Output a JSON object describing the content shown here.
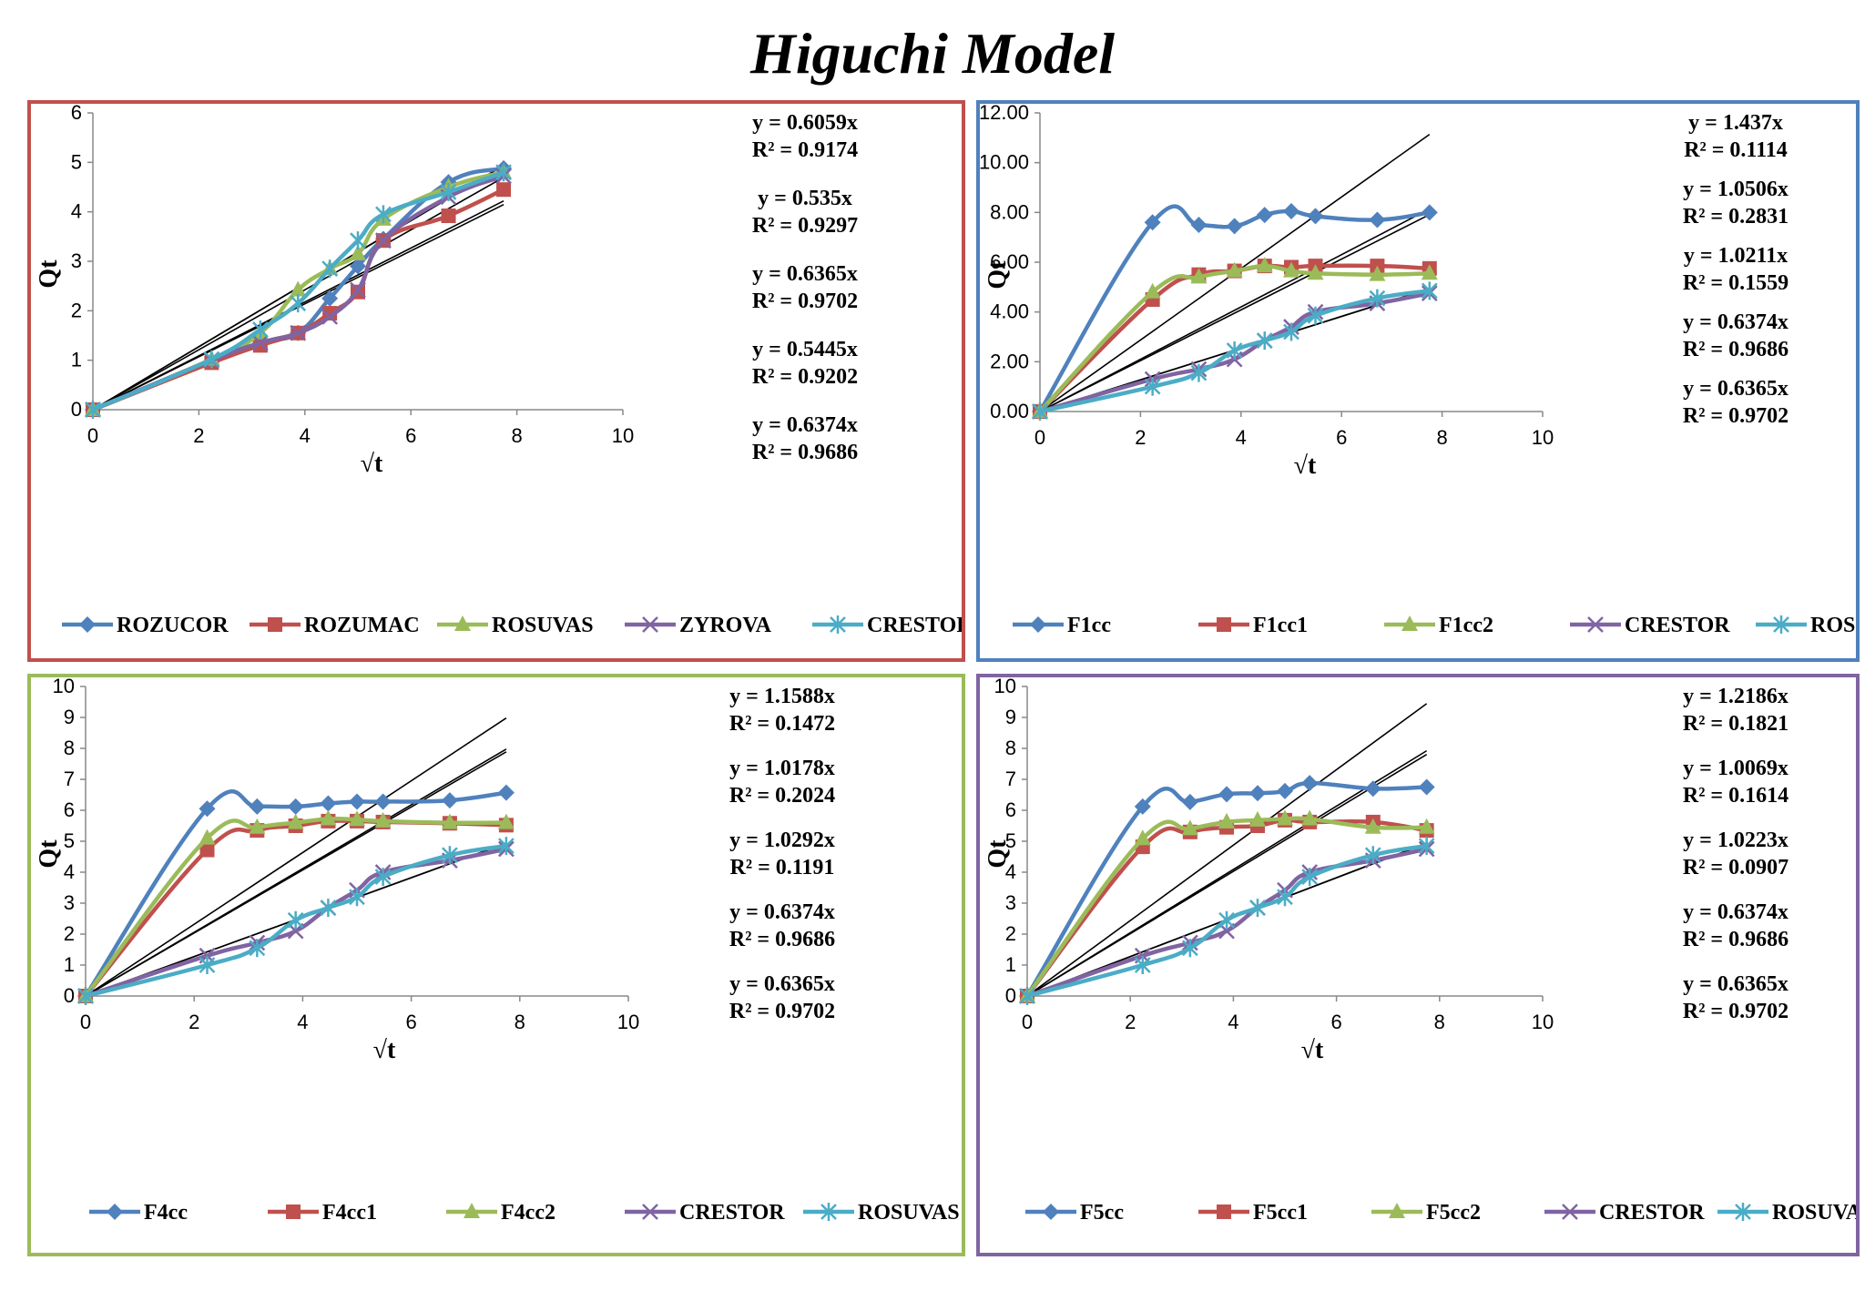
{
  "title": "Higuchi Model",
  "chart_data": [
    {
      "type": "line",
      "panel_color": "#c0504d",
      "xlabel": "√t",
      "ylabel": "Qt",
      "xlim": [
        0,
        10
      ],
      "ylim": [
        0,
        6
      ],
      "xticks": [
        "0",
        "2",
        "4",
        "6",
        "8",
        "10"
      ],
      "yticks": [
        "0",
        "1",
        "2",
        "3",
        "4",
        "5",
        "6"
      ],
      "x": [
        0,
        2.24,
        3.16,
        3.87,
        4.47,
        5,
        5.48,
        6.71,
        7.75
      ],
      "series": [
        {
          "name": "ROZUCOR",
          "color": "#4f81bd",
          "marker": "diamond",
          "values": [
            0,
            0.97,
            1.35,
            1.55,
            2.25,
            2.9,
            3.45,
            4.6,
            4.88
          ]
        },
        {
          "name": "ROZUMAC",
          "color": "#c0504d",
          "marker": "square",
          "values": [
            0,
            0.95,
            1.3,
            1.55,
            1.95,
            2.38,
            3.42,
            3.92,
            4.45
          ]
        },
        {
          "name": "ROSUVAS",
          "color": "#9bbb59",
          "marker": "triangle",
          "values": [
            0,
            1.02,
            1.55,
            2.42,
            2.85,
            3.15,
            3.85,
            4.5,
            4.8
          ]
        },
        {
          "name": "ZYROVA",
          "color": "#8064a2",
          "marker": "x",
          "values": [
            0,
            1.0,
            1.35,
            1.55,
            1.88,
            2.42,
            3.42,
            4.3,
            4.72
          ]
        },
        {
          "name": "CRESTOR",
          "color": "#4bacc6",
          "marker": "star",
          "values": [
            0,
            1.02,
            1.62,
            2.15,
            2.85,
            3.42,
            3.95,
            4.4,
            4.8
          ]
        }
      ],
      "trendlines": [
        0.6059,
        0.535,
        0.6365,
        0.5445,
        0.6374
      ],
      "equations": [
        {
          "eq": "y = 0.6059x",
          "r2": "R² = 0.9174"
        },
        {
          "eq": "y = 0.535x",
          "r2": "R² = 0.9297"
        },
        {
          "eq": "y = 0.6365x",
          "r2": "R² = 0.9702"
        },
        {
          "eq": "y = 0.5445x",
          "r2": "R² = 0.9202"
        },
        {
          "eq": "y = 0.6374x",
          "r2": "R² = 0.9686"
        }
      ]
    },
    {
      "type": "line",
      "panel_color": "#4f81bd",
      "xlabel": "√t",
      "ylabel": "Qt",
      "xlim": [
        0,
        10
      ],
      "ylim": [
        0,
        12
      ],
      "xticks": [
        "0",
        "2",
        "4",
        "6",
        "8",
        "10"
      ],
      "yticks": [
        "0.00",
        "2.00",
        "4.00",
        "6.00",
        "8.00",
        "10.00",
        "12.00"
      ],
      "x": [
        0,
        2.24,
        3.16,
        3.87,
        4.47,
        5,
        5.48,
        6.71,
        7.75
      ],
      "series": [
        {
          "name": "F1cc",
          "color": "#4f81bd",
          "marker": "diamond",
          "values": [
            0,
            7.6,
            7.5,
            7.45,
            7.9,
            8.05,
            7.85,
            7.7,
            8.0
          ]
        },
        {
          "name": "F1cc1",
          "color": "#c0504d",
          "marker": "square",
          "values": [
            0,
            4.5,
            5.5,
            5.65,
            5.85,
            5.8,
            5.85,
            5.85,
            5.75
          ]
        },
        {
          "name": "F1cc2",
          "color": "#9bbb59",
          "marker": "triangle",
          "values": [
            0,
            4.8,
            5.4,
            5.65,
            5.85,
            5.65,
            5.55,
            5.5,
            5.55
          ]
        },
        {
          "name": "CRESTOR",
          "color": "#8064a2",
          "marker": "x",
          "values": [
            0,
            1.3,
            1.7,
            2.1,
            2.85,
            3.4,
            4.0,
            4.35,
            4.75
          ]
        },
        {
          "name": "ROSUVAS",
          "color": "#4bacc6",
          "marker": "star",
          "values": [
            0,
            1.0,
            1.55,
            2.45,
            2.85,
            3.2,
            3.85,
            4.55,
            4.85
          ]
        }
      ],
      "trendlines": [
        1.437,
        1.0506,
        1.0211,
        0.6374,
        0.6365
      ],
      "equations": [
        {
          "eq": "y = 1.437x",
          "r2": "R² = 0.1114"
        },
        {
          "eq": "y = 1.0506x",
          "r2": "R² = 0.2831"
        },
        {
          "eq": "y = 1.0211x",
          "r2": "R² = 0.1559"
        },
        {
          "eq": "y = 0.6374x",
          "r2": "R² = 0.9686"
        },
        {
          "eq": "y = 0.6365x",
          "r2": "R² = 0.9702"
        }
      ]
    },
    {
      "type": "line",
      "panel_color": "#9bbb59",
      "xlabel": "√t",
      "ylabel": "Qt",
      "xlim": [
        0,
        10
      ],
      "ylim": [
        0,
        10
      ],
      "xticks": [
        "0",
        "2",
        "4",
        "6",
        "8",
        "10"
      ],
      "yticks": [
        "0",
        "1",
        "2",
        "3",
        "4",
        "5",
        "6",
        "7",
        "8",
        "9",
        "10"
      ],
      "x": [
        0,
        2.24,
        3.16,
        3.87,
        4.47,
        5,
        5.48,
        6.71,
        7.75
      ],
      "series": [
        {
          "name": "F4cc",
          "color": "#4f81bd",
          "marker": "diamond",
          "values": [
            0,
            6.05,
            6.12,
            6.12,
            6.22,
            6.28,
            6.28,
            6.32,
            6.57
          ]
        },
        {
          "name": "F4cc1",
          "color": "#c0504d",
          "marker": "square",
          "values": [
            0,
            4.72,
            5.35,
            5.5,
            5.65,
            5.65,
            5.62,
            5.58,
            5.52
          ]
        },
        {
          "name": "F4cc2",
          "color": "#9bbb59",
          "marker": "triangle",
          "values": [
            0,
            5.1,
            5.45,
            5.6,
            5.72,
            5.7,
            5.65,
            5.6,
            5.6
          ]
        },
        {
          "name": "CRESTOR",
          "color": "#8064a2",
          "marker": "x",
          "values": [
            0,
            1.3,
            1.72,
            2.1,
            2.85,
            3.42,
            4.0,
            4.38,
            4.75
          ]
        },
        {
          "name": "ROSUVAS",
          "color": "#4bacc6",
          "marker": "star",
          "values": [
            0,
            1.0,
            1.55,
            2.45,
            2.85,
            3.2,
            3.85,
            4.55,
            4.85
          ]
        }
      ],
      "trendlines": [
        1.1588,
        1.0178,
        1.0292,
        0.6374,
        0.6365
      ],
      "equations": [
        {
          "eq": "y = 1.1588x",
          "r2": "R² = 0.1472"
        },
        {
          "eq": "y = 1.0178x",
          "r2": "R² = 0.2024"
        },
        {
          "eq": "y = 1.0292x",
          "r2": "R² = 0.1191"
        },
        {
          "eq": "y = 0.6374x",
          "r2": "R² = 0.9686"
        },
        {
          "eq": "y = 0.6365x",
          "r2": "R² = 0.9702"
        }
      ]
    },
    {
      "type": "line",
      "panel_color": "#8064a2",
      "xlabel": "√t",
      "ylabel": "Qt",
      "xlim": [
        0,
        10
      ],
      "ylim": [
        0,
        10
      ],
      "xticks": [
        "0",
        "2",
        "4",
        "6",
        "8",
        "10"
      ],
      "yticks": [
        "0",
        "1",
        "2",
        "3",
        "4",
        "5",
        "6",
        "7",
        "8",
        "9",
        "10"
      ],
      "x": [
        0,
        2.24,
        3.16,
        3.87,
        4.47,
        5,
        5.48,
        6.71,
        7.75
      ],
      "series": [
        {
          "name": "F5cc",
          "color": "#4f81bd",
          "marker": "diamond",
          "values": [
            0,
            6.12,
            6.27,
            6.52,
            6.55,
            6.62,
            6.88,
            6.7,
            6.75
          ]
        },
        {
          "name": "F5cc1",
          "color": "#c0504d",
          "marker": "square",
          "values": [
            0,
            4.82,
            5.3,
            5.45,
            5.5,
            5.68,
            5.62,
            5.62,
            5.35
          ]
        },
        {
          "name": "F5cc2",
          "color": "#9bbb59",
          "marker": "triangle",
          "values": [
            0,
            5.08,
            5.4,
            5.62,
            5.68,
            5.72,
            5.72,
            5.45,
            5.45
          ]
        },
        {
          "name": "CRESTOR",
          "color": "#8064a2",
          "marker": "x",
          "values": [
            0,
            1.3,
            1.72,
            2.1,
            2.85,
            3.42,
            4.0,
            4.38,
            4.75
          ]
        },
        {
          "name": "ROSUVAS",
          "color": "#4bacc6",
          "marker": "star",
          "values": [
            0,
            1.0,
            1.55,
            2.45,
            2.85,
            3.2,
            3.85,
            4.55,
            4.85
          ]
        }
      ],
      "trendlines": [
        1.2186,
        1.0069,
        1.0223,
        0.6374,
        0.6365
      ],
      "equations": [
        {
          "eq": "y = 1.2186x",
          "r2": "R² = 0.1821"
        },
        {
          "eq": "y = 1.0069x",
          "r2": "R² = 0.1614"
        },
        {
          "eq": "y = 1.0223x",
          "r2": "R² = 0.0907"
        },
        {
          "eq": "y = 0.6374x",
          "r2": "R² = 0.9686"
        },
        {
          "eq": "y = 0.6365x",
          "r2": "R² = 0.9702"
        }
      ]
    }
  ]
}
